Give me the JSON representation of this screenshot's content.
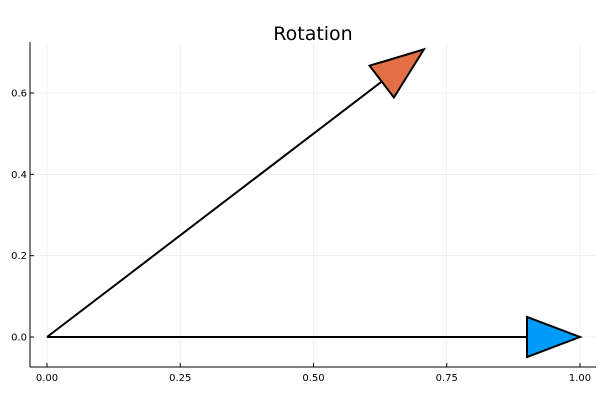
{
  "chart_data": {
    "type": "line",
    "title": "Rotation",
    "xlabel": "",
    "ylabel": "",
    "xlim": [
      -0.03,
      1.03
    ],
    "ylim": [
      -0.075,
      0.72
    ],
    "xticks": [
      0,
      0.25,
      0.5,
      0.75,
      1
    ],
    "xtick_labels": [
      "0.00",
      "0.25",
      "0.50",
      "0.75",
      "1.00"
    ],
    "yticks": [
      0,
      0.2,
      0.4,
      0.6
    ],
    "ytick_labels": [
      "0.0",
      "0.2",
      "0.4",
      "0.6"
    ],
    "grid": true,
    "series": [
      {
        "from": [
          0,
          0
        ],
        "to": [
          1,
          0
        ],
        "color": "#009af9"
      },
      {
        "from": [
          0,
          0
        ],
        "to": [
          0.7071,
          0.7071
        ],
        "color": "#e26f46"
      }
    ]
  }
}
